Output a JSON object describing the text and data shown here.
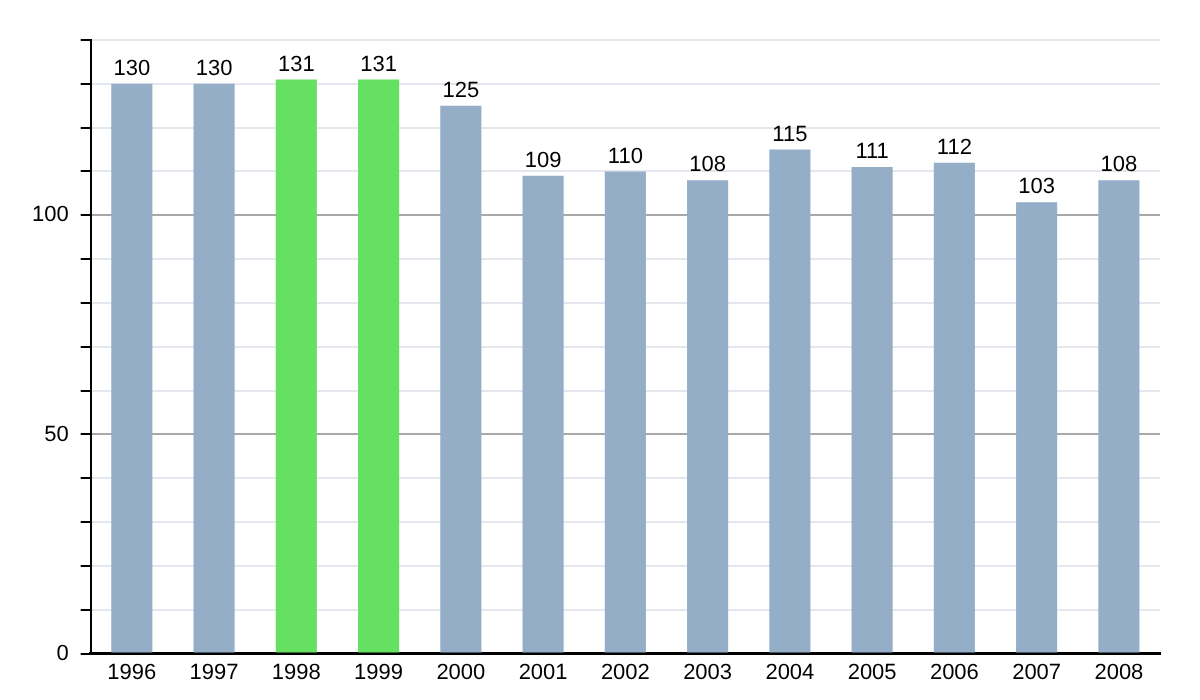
{
  "chart_data": {
    "type": "bar",
    "categories": [
      "1996",
      "1997",
      "1998",
      "1999",
      "2000",
      "2001",
      "2002",
      "2003",
      "2004",
      "2005",
      "2006",
      "2007",
      "2008"
    ],
    "values": [
      130,
      130,
      131,
      131,
      125,
      109,
      110,
      108,
      115,
      111,
      112,
      103,
      108
    ],
    "colors": [
      "#94aec8",
      "#94aec8",
      "#66e060",
      "#66e060",
      "#94aec8",
      "#94aec8",
      "#94aec8",
      "#94aec8",
      "#94aec8",
      "#94aec8",
      "#94aec8",
      "#94aec8",
      "#94aec8"
    ],
    "ylim": [
      0,
      140
    ],
    "yticks": [
      0,
      {
        "value": 10,
        "label": null
      },
      {
        "value": 20,
        "label": null
      },
      {
        "value": 30,
        "label": null
      },
      {
        "value": 40,
        "label": null
      },
      50,
      {
        "value": 60,
        "label": null
      },
      {
        "value": 70,
        "label": null
      },
      {
        "value": 80,
        "label": null
      },
      {
        "value": 90,
        "label": null
      },
      100,
      {
        "value": 110,
        "label": null
      },
      {
        "value": 120,
        "label": null
      },
      {
        "value": 130,
        "label": null
      },
      {
        "value": 140,
        "label": null
      }
    ],
    "grid": "y",
    "data_labels": true,
    "legend": false
  }
}
